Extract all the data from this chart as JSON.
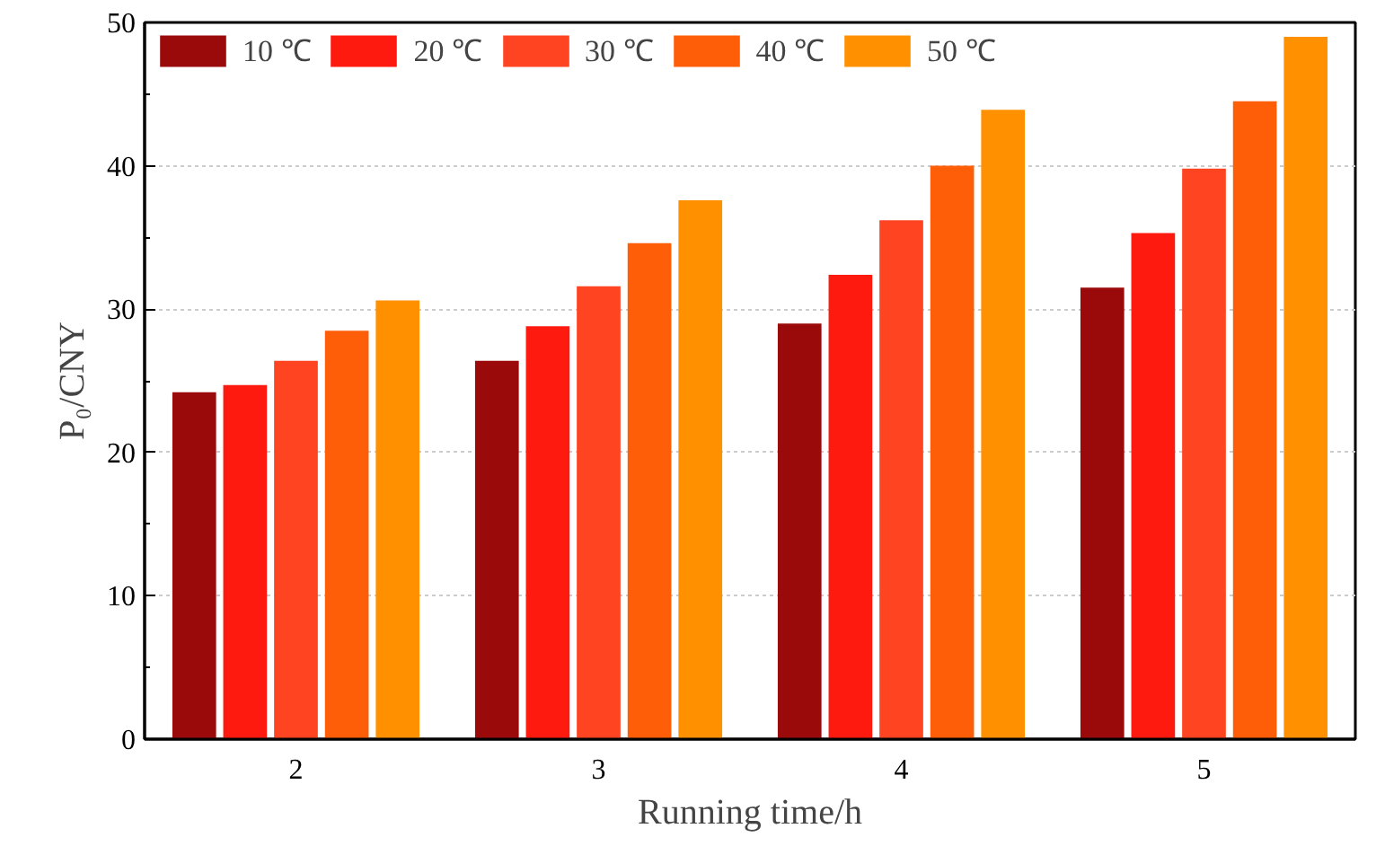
{
  "chart_data": {
    "type": "bar",
    "xlabel": "Running time/h",
    "ylabel": "P₀/CNY",
    "categories": [
      "2",
      "3",
      "4",
      "5"
    ],
    "series": [
      {
        "name": "10 ℃",
        "color": "#9b0a0a",
        "values": [
          24.2,
          26.4,
          29.0,
          31.5
        ]
      },
      {
        "name": "20 ℃",
        "color": "#ff1a10",
        "values": [
          24.7,
          28.8,
          32.4,
          35.3
        ]
      },
      {
        "name": "30 ℃",
        "color": "#ff4422",
        "values": [
          26.4,
          31.6,
          36.2,
          39.8
        ]
      },
      {
        "name": "40 ℃",
        "color": "#ff5e08",
        "values": [
          28.5,
          34.6,
          40.0,
          44.5
        ]
      },
      {
        "name": "50 ℃",
        "color": "#ff9000",
        "values": [
          30.6,
          37.6,
          43.9,
          49.0
        ]
      }
    ],
    "ylim": [
      0,
      50
    ],
    "yticks": [
      0,
      10,
      20,
      30,
      40,
      50
    ],
    "grid": "y",
    "legend": "top left"
  }
}
